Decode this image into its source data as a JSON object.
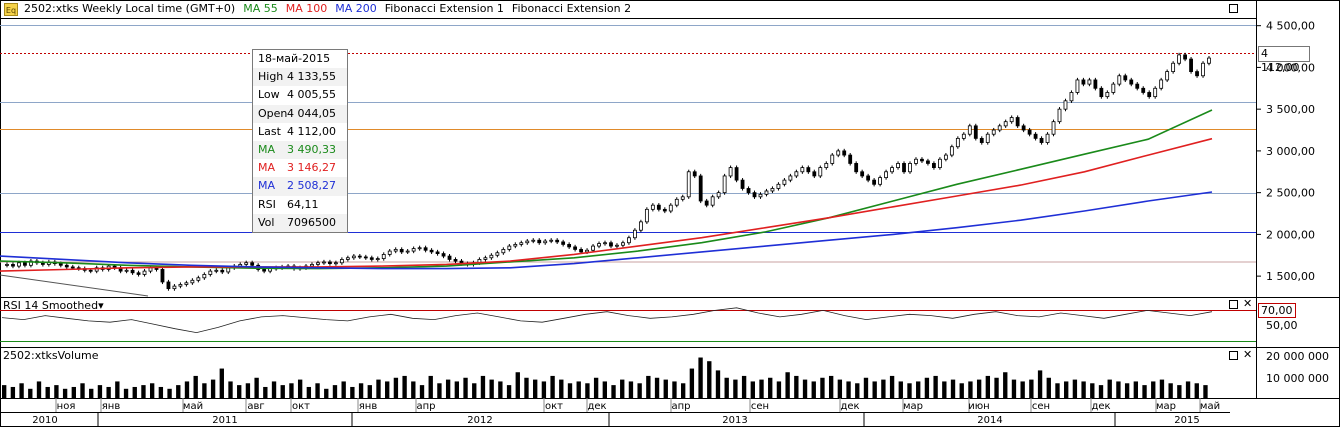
{
  "header": {
    "instrument": "2502:xtks Weekly Local time (GMT+0)",
    "indicators": [
      {
        "label": "MA 55",
        "color": "#1a8a1a"
      },
      {
        "label": "MA 100",
        "color": "#e02020"
      },
      {
        "label": "MA 200",
        "color": "#1f2fd6"
      },
      {
        "label": "Fibonacci Extension 1",
        "color": "#000000"
      },
      {
        "label": "Fibonacci Extension 2",
        "color": "#000000"
      }
    ]
  },
  "tooltip": {
    "date": "18-май-2015",
    "rows": [
      {
        "k": "High",
        "v": "4 133,55",
        "color": "#000000"
      },
      {
        "k": "Low",
        "v": "4 005,55",
        "color": "#000000"
      },
      {
        "k": "Open",
        "v": "4 044,05",
        "color": "#000000"
      },
      {
        "k": "Last",
        "v": "4 112,00",
        "color": "#000000"
      },
      {
        "k": "MA",
        "v": "3 490,33",
        "color": "#1a8a1a"
      },
      {
        "k": "MA",
        "v": "3 146,27",
        "color": "#e02020"
      },
      {
        "k": "MA",
        "v": "2 508,27",
        "color": "#1f2fd6"
      },
      {
        "k": "RSI",
        "v": "64,11",
        "color": "#000000"
      },
      {
        "k": "Vol",
        "v": "7096500",
        "color": "#000000"
      }
    ]
  },
  "price_tag": "4 112,00",
  "rsi_panel": {
    "title": "RSI 14 Smoothed",
    "level_tag": "70,00",
    "ticks": [
      "50,00"
    ]
  },
  "volume_panel": {
    "title": "2502:xtksVolume",
    "ticks": [
      "20 000 000",
      "10 000 000"
    ]
  },
  "colors": {
    "ma55": "#1a8a1a",
    "ma100": "#e02020",
    "ma200": "#1f2fd6",
    "fib_blue": "#8ea6c8",
    "fib_orange": "#e08a2a",
    "last_line": "#c00000"
  },
  "chart_data": {
    "type": "candlestick",
    "title": "",
    "y_ticks": [
      "4 500,00",
      "4 000,00",
      "3 500,00",
      "3 000,00",
      "2 500,00",
      "2 000,00",
      "1 500,00"
    ],
    "ylim": [
      1250,
      4580
    ],
    "x_month_labels": [
      "ноя",
      "янв",
      "май",
      "авг",
      "окт",
      "янв",
      "апр",
      "окт",
      "дек",
      "апр",
      "сен",
      "дек",
      "мар",
      "июн",
      "сен",
      "дек",
      "мар",
      "май"
    ],
    "x_year_labels": [
      "2010",
      "2011",
      "2012",
      "2013",
      "2014",
      "2015"
    ],
    "close": [
      1640,
      1620,
      1660,
      1630,
      1680,
      1660,
      1640,
      1670,
      1650,
      1630,
      1610,
      1600,
      1590,
      1570,
      1560,
      1600,
      1580,
      1620,
      1600,
      1560,
      1570,
      1540,
      1520,
      1560,
      1600,
      1580,
      1430,
      1350,
      1380,
      1400,
      1420,
      1450,
      1480,
      1520,
      1560,
      1570,
      1550,
      1600,
      1620,
      1640,
      1660,
      1630,
      1580,
      1560,
      1590,
      1600,
      1610,
      1620,
      1590,
      1600,
      1620,
      1640,
      1660,
      1670,
      1650,
      1660,
      1700,
      1720,
      1740,
      1730,
      1720,
      1700,
      1710,
      1760,
      1800,
      1820,
      1790,
      1800,
      1830,
      1840,
      1810,
      1790,
      1770,
      1740,
      1700,
      1680,
      1650,
      1640,
      1660,
      1700,
      1720,
      1750,
      1780,
      1820,
      1860,
      1880,
      1900,
      1920,
      1930,
      1900,
      1920,
      1930,
      1910,
      1880,
      1850,
      1820,
      1790,
      1810,
      1860,
      1890,
      1900,
      1860,
      1870,
      1900,
      1960,
      2050,
      2150,
      2300,
      2350,
      2300,
      2280,
      2350,
      2420,
      2450,
      2750,
      2700,
      2400,
      2350,
      2450,
      2500,
      2700,
      2800,
      2650,
      2550,
      2500,
      2450,
      2480,
      2520,
      2550,
      2600,
      2650,
      2700,
      2750,
      2800,
      2750,
      2700,
      2800,
      2850,
      2950,
      3000,
      2950,
      2850,
      2750,
      2700,
      2650,
      2600,
      2680,
      2750,
      2800,
      2850,
      2750,
      2850,
      2900,
      2880,
      2850,
      2800,
      2900,
      2950,
      3050,
      3150,
      3200,
      3300,
      3150,
      3100,
      3200,
      3250,
      3300,
      3350,
      3400,
      3300,
      3250,
      3200,
      3150,
      3100,
      3200,
      3350,
      3500,
      3600,
      3700,
      3850,
      3800,
      3850,
      3750,
      3650,
      3700,
      3800,
      3900,
      3850,
      3800,
      3750,
      3700,
      3650,
      3750,
      3850,
      3950,
      4050,
      4150,
      4100,
      3950,
      3900,
      4050,
      4112
    ],
    "series": [
      {
        "name": "MA 55",
        "values": [
          1680,
          1660,
          1630,
          1610,
          1595,
          1590,
          1600,
          1620,
          1670,
          1720,
          1800,
          1900,
          2030,
          2200,
          2400,
          2600,
          2780,
          2960,
          3140,
          3490
        ]
      },
      {
        "name": "MA 100",
        "values": [
          1560,
          1580,
          1600,
          1610,
          1610,
          1610,
          1620,
          1640,
          1680,
          1760,
          1860,
          1960,
          2080,
          2200,
          2330,
          2460,
          2590,
          2750,
          2950,
          3146
        ]
      },
      {
        "name": "MA 200",
        "values": [
          1740,
          1700,
          1660,
          1630,
          1610,
          1600,
          1590,
          1590,
          1600,
          1650,
          1720,
          1790,
          1860,
          1930,
          2000,
          2080,
          2170,
          2280,
          2400,
          2508
        ]
      }
    ],
    "rsi_values": [
      55,
      52,
      58,
      54,
      50,
      48,
      52,
      45,
      38,
      32,
      40,
      50,
      56,
      58,
      55,
      52,
      50,
      56,
      60,
      54,
      52,
      58,
      62,
      56,
      50,
      48,
      54,
      60,
      64,
      58,
      54,
      56,
      60,
      66,
      70,
      62,
      56,
      60,
      66,
      58,
      52,
      56,
      60,
      58,
      54,
      60,
      64,
      58,
      56,
      62,
      58,
      54,
      60,
      66,
      62,
      58,
      64
    ],
    "rsi_level": 70,
    "volume_millions": [
      7,
      6,
      8,
      5,
      9,
      6,
      7,
      5,
      6,
      8,
      5,
      7,
      6,
      9,
      5,
      6,
      7,
      8,
      6,
      5,
      7,
      9,
      12,
      8,
      10,
      16,
      9,
      7,
      8,
      11,
      6,
      9,
      7,
      8,
      10,
      6,
      8,
      5,
      7,
      9,
      6,
      8,
      7,
      10,
      9,
      11,
      12,
      9,
      7,
      12,
      8,
      10,
      9,
      11,
      8,
      12,
      10,
      9,
      7,
      14,
      11,
      10,
      9,
      12,
      10,
      8,
      9,
      8,
      11,
      9,
      7,
      10,
      9,
      8,
      12,
      11,
      10,
      9,
      8,
      16,
      22,
      20,
      15,
      11,
      10,
      12,
      9,
      10,
      11,
      9,
      14,
      12,
      10,
      9,
      11,
      12,
      10,
      9,
      8,
      11,
      9,
      10,
      12,
      9,
      8,
      9,
      11,
      12,
      9,
      10,
      8,
      9,
      10,
      12,
      11,
      14,
      10,
      9,
      10,
      15,
      11,
      8,
      9,
      10,
      9,
      8,
      7,
      10,
      9,
      8,
      9,
      7,
      9,
      10,
      8,
      7,
      9,
      8,
      7
    ]
  }
}
